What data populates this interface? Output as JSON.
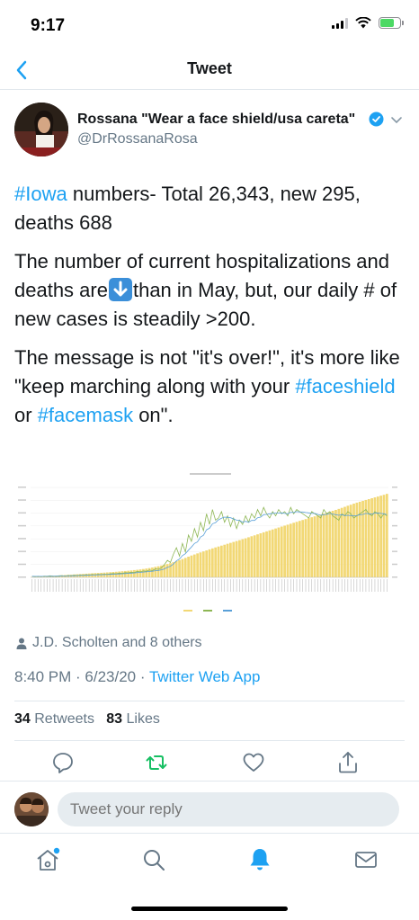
{
  "status_bar": {
    "time": "9:17"
  },
  "nav": {
    "title": "Tweet"
  },
  "tweet": {
    "author_name": "Rossana \"Wear a face shield/usa careta\"",
    "handle": "@DrRossanaRosa",
    "p1_tag": "#Iowa",
    "p1_text": " numbers- Total 26,343, new 295, deaths 688",
    "p2_before": "The number of current hospitalizations and deaths are",
    "p2_after": "than in May, but, our daily # of new cases is steadily >200.",
    "p3_before": "The message is not \"it's over!\", it's more like \"keep marching along with your ",
    "p3_tag1": "#faceshield",
    "p3_mid": " or ",
    "p3_tag2": "#facemask",
    "p3_after": " on\".",
    "liked_by": "J.D. Scholten and 8 others",
    "time": "8:40 PM · 6/23/20 · ",
    "source": "Twitter Web App",
    "retweets_count": "34",
    "retweets_label": " Retweets",
    "likes_count": "83",
    "likes_label": " Likes"
  },
  "reply": {
    "placeholder": "Tweet your reply"
  },
  "colors": {
    "accent": "#1da1f2",
    "bar": "#f2d875",
    "line_daily": "#8db654",
    "line_avg": "#5aa0d8"
  },
  "icons": {
    "back": "chevron-left-icon",
    "verified": "verified-badge-icon",
    "caret": "chevron-down-icon",
    "reply": "comment-icon",
    "retweet": "retweet-icon",
    "like": "heart-icon",
    "share": "share-icon",
    "home": "home-icon",
    "search": "search-icon",
    "notifications": "bell-icon",
    "messages": "envelope-icon"
  },
  "chart_data": {
    "type": "bar",
    "cumulative": [
      5,
      7,
      9,
      12,
      15,
      18,
      21,
      24,
      26,
      29,
      32,
      36,
      39,
      41,
      45,
      48,
      51,
      54,
      57,
      60,
      63,
      66,
      68,
      71,
      74,
      77,
      80,
      84,
      87,
      91,
      95,
      99,
      103,
      108,
      113,
      118,
      124,
      130,
      137,
      145,
      153,
      163,
      173,
      184,
      196,
      208,
      221,
      236,
      252,
      268,
      285,
      303,
      322,
      340,
      356,
      373,
      388,
      404,
      419,
      436,
      451,
      466,
      480,
      494,
      508,
      523,
      537,
      551,
      565,
      579,
      594,
      608,
      624,
      640,
      654,
      670,
      686,
      701,
      716,
      731,
      746,
      761,
      776,
      791,
      806,
      820,
      835,
      850,
      864,
      879,
      893,
      907,
      922,
      936,
      950,
      964,
      978,
      993,
      1007,
      1021,
      1036,
      1050,
      1066,
      1082,
      1098,
      1115,
      1131,
      1148,
      1163,
      1177,
      1191,
      1205,
      1218,
      1232,
      1245,
      1258,
      1272,
      1285,
      1300
    ],
    "daily": [
      5,
      4,
      5,
      4,
      6,
      5,
      7,
      6,
      5,
      7,
      8,
      6,
      9,
      8,
      10,
      9,
      11,
      10,
      12,
      11,
      13,
      12,
      14,
      13,
      15,
      14,
      16,
      18,
      17,
      20,
      19,
      22,
      21,
      24,
      23,
      28,
      26,
      30,
      29,
      35,
      32,
      40,
      38,
      45,
      60,
      80,
      70,
      110,
      140,
      100,
      160,
      120,
      200,
      170,
      230,
      190,
      260,
      220,
      300,
      250,
      320,
      270,
      280,
      310,
      260,
      290,
      240,
      280,
      230,
      270,
      250,
      290,
      260,
      300,
      280,
      320,
      290,
      330,
      300,
      280,
      310,
      290,
      320,
      300,
      310,
      290,
      330,
      300,
      320,
      310,
      300,
      290,
      280,
      310,
      300,
      290,
      280,
      320,
      300,
      310,
      290,
      280,
      270,
      300,
      290,
      310,
      300,
      280,
      290,
      300,
      310,
      320,
      300,
      290,
      310,
      300,
      280,
      300,
      290
    ],
    "ylim": [
      0,
      1400
    ]
  }
}
